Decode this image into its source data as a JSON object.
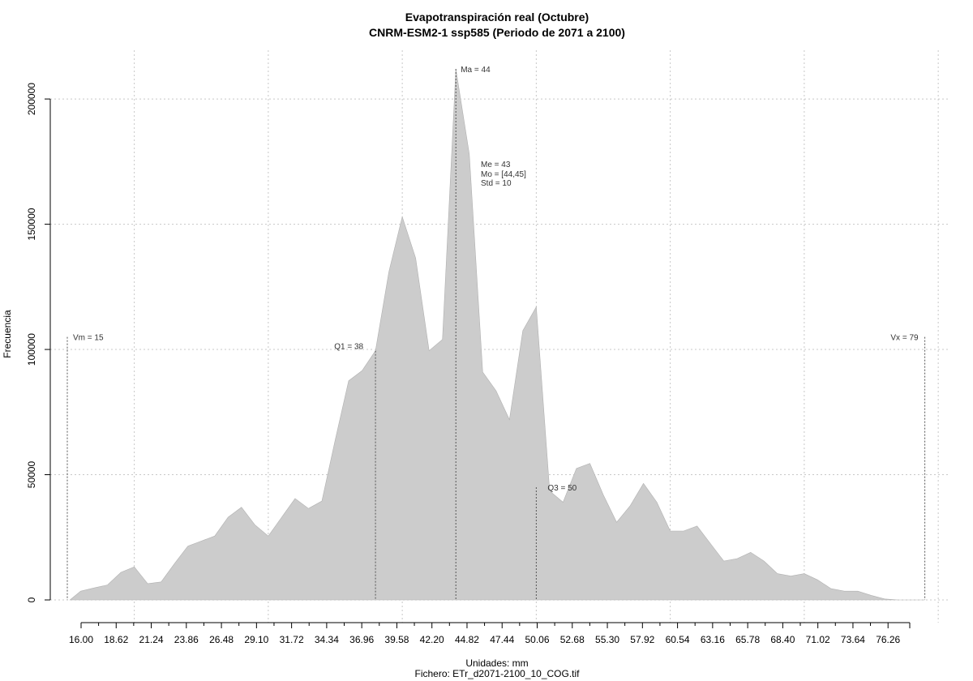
{
  "chart_data": {
    "type": "area",
    "title": "Evapotranspiración real (Octubre)",
    "subtitle": "CNRM-ESM2-1 ssp585 (Periodo de 2071 a 2100)",
    "xlabel": "Unidades: mm",
    "ylabel": "Frecuencia",
    "footer": "Fichero: ETr_d2071-2100_10_COG.tif",
    "xlim": [
      15,
      79
    ],
    "ylim": [
      0,
      212000
    ],
    "x_tick_labels": [
      "16.00",
      "18.62",
      "21.24",
      "23.86",
      "26.48",
      "29.10",
      "31.72",
      "34.34",
      "36.96",
      "39.58",
      "42.20",
      "44.82",
      "47.44",
      "50.06",
      "52.68",
      "55.30",
      "57.92",
      "60.54",
      "63.16",
      "65.78",
      "68.40",
      "71.02",
      "73.64",
      "76.26"
    ],
    "y_ticks": [
      0,
      50000,
      100000,
      150000,
      200000
    ],
    "y_tick_labels": [
      "0",
      "50000",
      "100000",
      "150000",
      "200000"
    ],
    "x_grid": [
      20,
      30,
      40,
      50,
      60,
      70,
      80
    ],
    "grid": true,
    "fill_color": "#cccccc",
    "points": [
      [
        15.2,
        0
      ],
      [
        16,
        3500
      ],
      [
        17,
        4800
      ],
      [
        18,
        6000
      ],
      [
        19,
        11000
      ],
      [
        20,
        13200
      ],
      [
        21,
        6500
      ],
      [
        22,
        7200
      ],
      [
        23,
        14500
      ],
      [
        24,
        21500
      ],
      [
        25,
        23500
      ],
      [
        26,
        25500
      ],
      [
        27,
        33000
      ],
      [
        28,
        37000
      ],
      [
        29,
        30000
      ],
      [
        30,
        25500
      ],
      [
        31,
        33000
      ],
      [
        32,
        40500
      ],
      [
        33,
        36500
      ],
      [
        34,
        39500
      ],
      [
        35,
        64000
      ],
      [
        36,
        87500
      ],
      [
        37,
        91500
      ],
      [
        38,
        99500
      ],
      [
        39,
        131000
      ],
      [
        40,
        153000
      ],
      [
        41,
        136500
      ],
      [
        42,
        99500
      ],
      [
        43,
        104000
      ],
      [
        44,
        212000
      ],
      [
        45,
        178000
      ],
      [
        46,
        91000
      ],
      [
        47,
        83500
      ],
      [
        48,
        72000
      ],
      [
        49,
        107500
      ],
      [
        50,
        117000
      ],
      [
        51,
        43500
      ],
      [
        52,
        39000
      ],
      [
        53,
        52500
      ],
      [
        54,
        54500
      ],
      [
        55,
        42000
      ],
      [
        56,
        31000
      ],
      [
        57,
        37500
      ],
      [
        58,
        46500
      ],
      [
        59,
        39000
      ],
      [
        60,
        27500
      ],
      [
        61,
        27500
      ],
      [
        62,
        29500
      ],
      [
        63,
        22500
      ],
      [
        64,
        15500
      ],
      [
        65,
        16500
      ],
      [
        66,
        19000
      ],
      [
        67,
        15500
      ],
      [
        68,
        10500
      ],
      [
        69,
        9500
      ],
      [
        70,
        10500
      ],
      [
        71,
        8000
      ],
      [
        72,
        4500
      ],
      [
        73,
        3500
      ],
      [
        74,
        3500
      ],
      [
        75,
        1800
      ],
      [
        76,
        400
      ],
      [
        77,
        0
      ],
      [
        79,
        0
      ]
    ],
    "markers": [
      {
        "label": "Vm = 15",
        "x": 15,
        "y": 105000
      },
      {
        "label": "Q1 = 38",
        "x": 38,
        "y": 99500
      },
      {
        "label": "Ma = 44",
        "x": 44,
        "y": 212000
      },
      {
        "label": "Q3 = 50",
        "x": 50,
        "y": 45000
      },
      {
        "label": "Vx = 79",
        "x": 79,
        "y": 105000
      }
    ],
    "stats": [
      "Me = 43",
      "Mo = [44,45]",
      "Std = 10"
    ]
  }
}
